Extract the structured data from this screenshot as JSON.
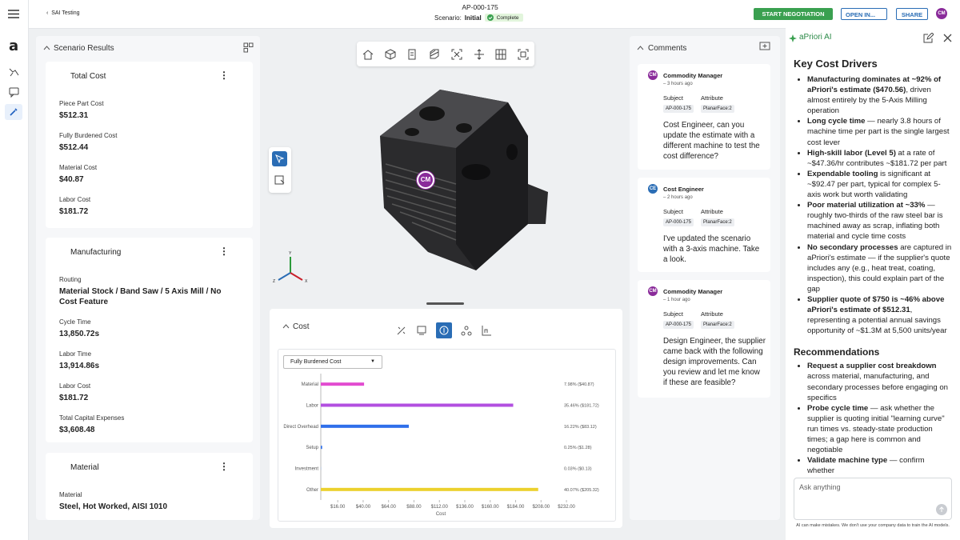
{
  "app": {
    "logo": "a"
  },
  "header": {
    "breadcrumb": "SAI Testing",
    "part_number": "AP-000-175",
    "scenario_label": "Scenario:",
    "scenario_name": "Initial",
    "status": "Complete",
    "start_button": "START NEGOTIATION",
    "open_button": "OPEN IN...",
    "share_button": "SHARE",
    "avatar": "CM"
  },
  "scenario_results": {
    "title": "Scenario Results",
    "sections": [
      {
        "title": "Total Cost",
        "fields": [
          {
            "label": "Piece Part Cost",
            "value": "$512.31"
          },
          {
            "label": "Fully Burdened Cost",
            "value": "$512.44"
          },
          {
            "label": "Material Cost",
            "value": "$40.87"
          },
          {
            "label": "Labor Cost",
            "value": "$181.72"
          }
        ]
      },
      {
        "title": "Manufacturing",
        "fields": [
          {
            "label": "Routing",
            "value": "Material Stock / Band Saw / 5 Axis Mill / No Cost Feature"
          },
          {
            "label": "Cycle Time",
            "value": "13,850.72s"
          },
          {
            "label": "Labor Time",
            "value": "13,914.86s"
          },
          {
            "label": "Labor Cost",
            "value": "$181.72"
          },
          {
            "label": "Total Capital Expenses",
            "value": "$3,608.48"
          }
        ]
      },
      {
        "title": "Material",
        "fields": [
          {
            "label": "Material",
            "value": "Steel, Hot Worked, AISI 1010"
          }
        ]
      }
    ]
  },
  "viewer": {
    "marker": "CM",
    "axis_y": "Y",
    "axis_z": "Z",
    "axis_x": "X"
  },
  "cost_panel": {
    "title": "Cost",
    "dropdown": "Fully Burdened Cost",
    "chart_data": {
      "type": "bar",
      "orientation": "horizontal",
      "x_label": "Cost",
      "categories": [
        "Material",
        "Labor",
        "Direct Overhead",
        "Setup",
        "Investment",
        "Other"
      ],
      "values": [
        40.87,
        181.72,
        83.12,
        1.28,
        0.13,
        205.32
      ],
      "value_labels": [
        "7.98% ($40.87)",
        "35.46% ($181.72)",
        "16.22% ($83.12)",
        "0.25% ($1.28)",
        "0.03% ($0.13)",
        "40.07% ($205.32)"
      ],
      "colors": [
        "#e24bd0",
        "#b24fe0",
        "#2f6fea",
        "#2f6fea",
        "#5b8ff5",
        "#ecd12e"
      ],
      "xlim": [
        0,
        272
      ],
      "xticks": [
        {
          "value": 16,
          "label": "$16.00"
        },
        {
          "value": 40,
          "label": "$40.00"
        },
        {
          "value": 64,
          "label": "$64.00"
        },
        {
          "value": 88,
          "label": "$88.00"
        },
        {
          "value": 112,
          "label": "$112.00"
        },
        {
          "value": 136,
          "label": "$136.00"
        },
        {
          "value": 160,
          "label": "$160.00"
        },
        {
          "value": 184,
          "label": "$184.00"
        },
        {
          "value": 208,
          "label": "$208.00"
        },
        {
          "value": 232,
          "label": "$232.00"
        }
      ],
      "grid": false
    }
  },
  "comments": {
    "title": "Comments",
    "items": [
      {
        "avatar": "CM",
        "author": "Commodity Manager",
        "time": "3 hours ago",
        "subject_label": "Subject",
        "attribute_label": "Attribute",
        "subject": "AP-000-175",
        "attribute": "PlanarFace:2",
        "text": "Cost Engineer, can you update the estimate with a different machine to test the cost difference?"
      },
      {
        "avatar": "CE",
        "author": "Cost Engineer",
        "time": "2 hours ago",
        "subject_label": "Subject",
        "attribute_label": "Attribute",
        "subject": "AP-000-175",
        "attribute": "PlanarFace:2",
        "text": "I've updated the scenario with a 3-axis machine. Take a look."
      },
      {
        "avatar": "CM",
        "author": "Commodity Manager",
        "time": "1 hour ago",
        "subject_label": "Subject",
        "attribute_label": "Attribute",
        "subject": "AP-000-175",
        "attribute": "PlanarFace:2",
        "text": "Design Engineer, the supplier came back with the following design improvements. Can you review and let me know if these are feasible?"
      }
    ]
  },
  "ai": {
    "title": "aPriori AI",
    "heading": "Key Cost Drivers",
    "drivers": [
      {
        "bold": "Manufacturing dominates at ~92% of aPriori's estimate ($470.56)",
        "text": ", driven almost entirely by the 5-Axis Milling operation"
      },
      {
        "bold": "Long cycle time",
        "text": " — nearly 3.8 hours of machine time per part is the single largest cost lever"
      },
      {
        "bold": "High-skill labor (Level 5)",
        "text": " at a rate of ~$47.36/hr contributes ~$181.72 per part"
      },
      {
        "bold": "Expendable tooling",
        "text": " is significant at ~$92.47 per part, typical for complex 5-axis work but worth validating"
      },
      {
        "bold": "Poor material utilization at ~33%",
        "text": " — roughly two-thirds of the raw steel bar is machined away as scrap, inflating both material and cycle time costs"
      },
      {
        "bold": "No secondary processes",
        "text": " are captured in aPriori's estimate — if the supplier's quote includes any (e.g., heat treat, coating, inspection), this could explain part of the gap"
      },
      {
        "bold": "Supplier quote of $750 is ~46% above aPriori's estimate of $512.31",
        "text": ", representing a potential annual savings opportunity of ~$1.3M at 5,500 units/year"
      }
    ],
    "recommendations_heading": "Recommendations",
    "recommendations": [
      {
        "bold": "Request a supplier cost breakdown",
        "text": " across material, manufacturing, and secondary processes before engaging on specifics"
      },
      {
        "bold": "Probe cycle time",
        "text": " — ask whether the supplier is quoting initial \"learning curve\" run times vs. steady-state production times; a gap here is common and negotiable"
      },
      {
        "bold": "Validate machine type",
        "text": " — confirm whether"
      }
    ],
    "input_placeholder": "Ask anything",
    "disclaimer": "AI can make mistakes. We don't use your company data to train the AI models."
  }
}
